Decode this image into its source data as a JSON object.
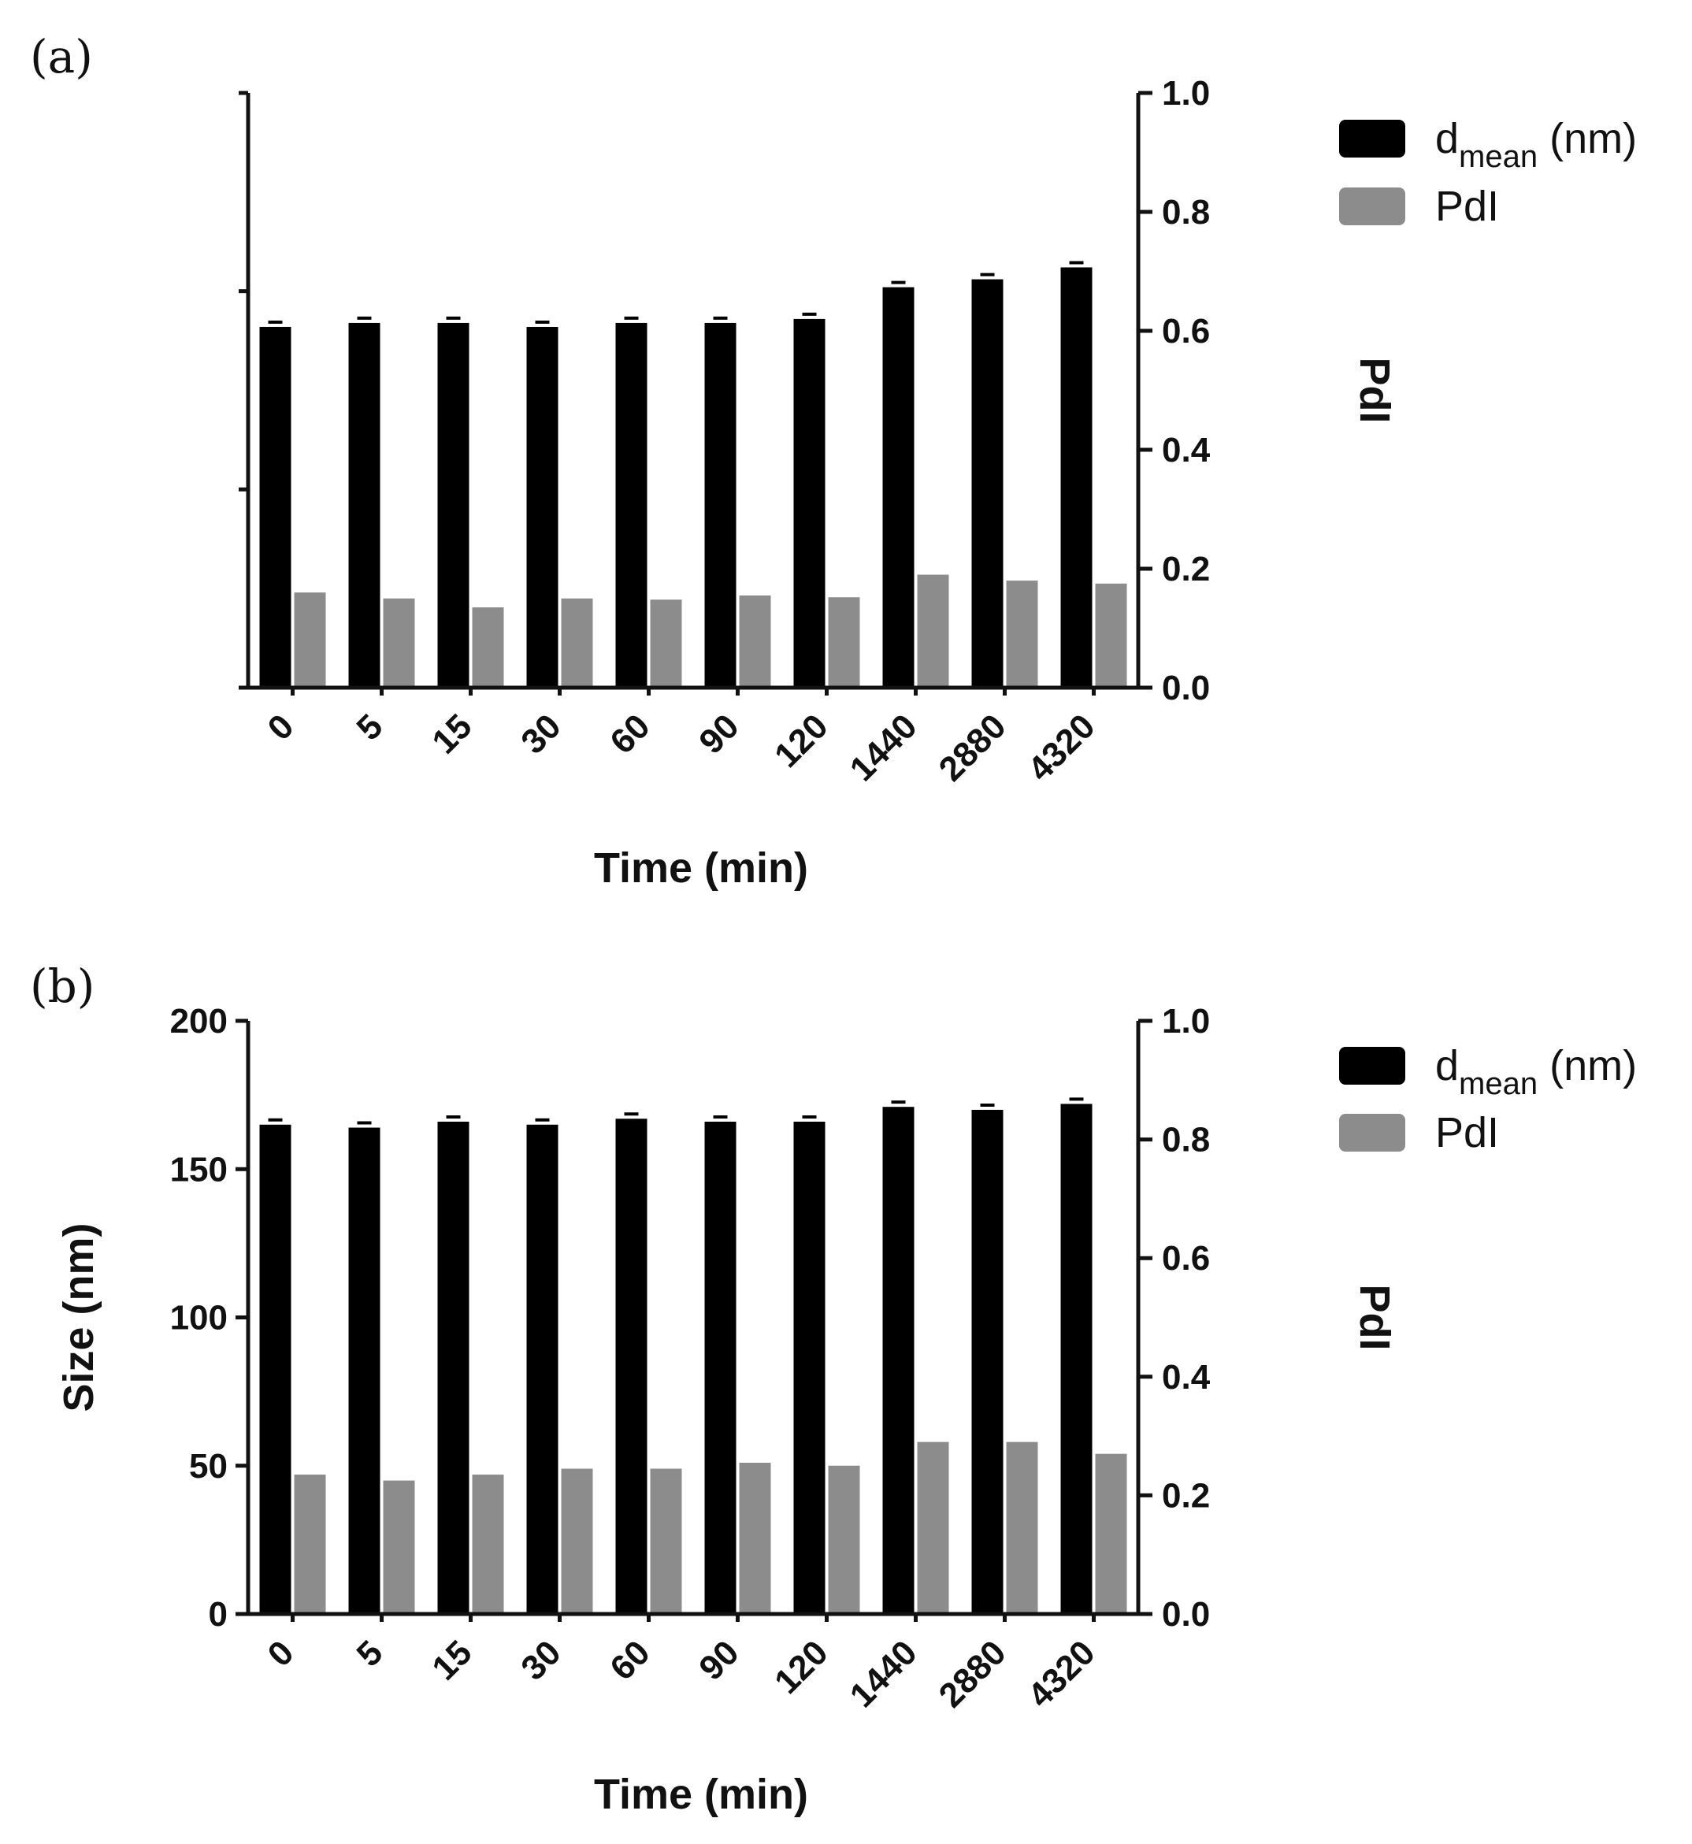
{
  "colors": {
    "dmean": "#000000",
    "pdi": "#8c8c8c",
    "axis": "#111111"
  },
  "chart_data": [
    {
      "type": "bar",
      "panel_label": "(a)",
      "categories": [
        "0",
        "5",
        "15",
        "30",
        "60",
        "90",
        "120",
        "1440",
        "2880",
        "4320"
      ],
      "xlabel": "Time (min)",
      "ylabel": "",
      "ylim": [
        0,
        150
      ],
      "y_ticks": [],
      "y2label": "PdI",
      "y2lim": [
        0,
        1.0
      ],
      "y2_ticks": [
        "0.0",
        "0.2",
        "0.4",
        "0.6",
        "0.8",
        "1.0"
      ],
      "series": [
        {
          "name": "dmean (nm)",
          "axis": "left",
          "values": [
            91,
            92,
            92,
            91,
            92,
            92,
            93,
            101,
            103,
            106
          ]
        },
        {
          "name": "PdI",
          "axis": "right",
          "values": [
            0.16,
            0.15,
            0.135,
            0.15,
            0.148,
            0.155,
            0.152,
            0.19,
            0.18,
            0.175
          ]
        }
      ],
      "legend": {
        "position": "right",
        "items": [
          {
            "main": "d",
            "sub": "mean",
            "suffix": " (nm)"
          },
          {
            "main": "PdI",
            "sub": "",
            "suffix": ""
          }
        ]
      }
    },
    {
      "type": "bar",
      "panel_label": "(b)",
      "categories": [
        "0",
        "5",
        "15",
        "30",
        "60",
        "90",
        "120",
        "1440",
        "2880",
        "4320"
      ],
      "xlabel": "Time (min)",
      "ylabel": "Size (nm)",
      "ylim": [
        0,
        200
      ],
      "y_ticks": [
        "0",
        "50",
        "100",
        "150",
        "200"
      ],
      "y2label": "PdI",
      "y2lim": [
        0,
        1.0
      ],
      "y2_ticks": [
        "0.0",
        "0.2",
        "0.4",
        "0.6",
        "0.8",
        "1.0"
      ],
      "series": [
        {
          "name": "dmean (nm)",
          "axis": "left",
          "values": [
            165,
            164,
            166,
            165,
            167,
            166,
            166,
            171,
            170,
            172
          ]
        },
        {
          "name": "PdI",
          "axis": "right",
          "values": [
            0.235,
            0.225,
            0.235,
            0.245,
            0.245,
            0.255,
            0.25,
            0.29,
            0.29,
            0.27
          ]
        }
      ],
      "legend": {
        "position": "right",
        "items": [
          {
            "main": "d",
            "sub": "mean",
            "suffix": " (nm)"
          },
          {
            "main": "PdI",
            "sub": "",
            "suffix": ""
          }
        ]
      }
    }
  ]
}
